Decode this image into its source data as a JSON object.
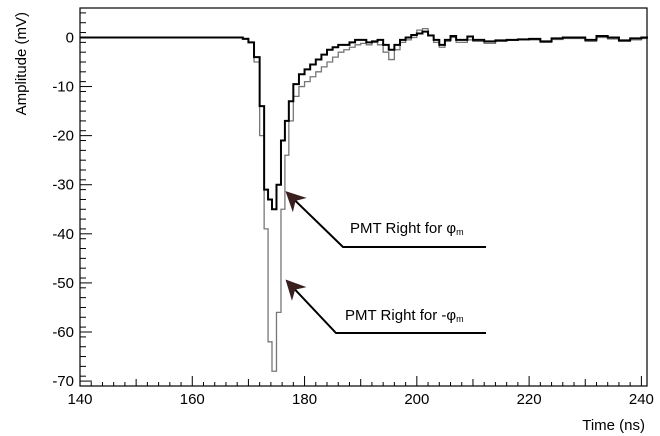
{
  "chart_data": {
    "type": "line",
    "title": "",
    "xlabel": "Time (ns)",
    "ylabel": "Amplitude (mV)",
    "xlim": [
      140,
      241
    ],
    "ylim": [
      -71,
      6
    ],
    "x_ticks": [
      140,
      160,
      180,
      200,
      220,
      240
    ],
    "y_ticks": [
      0,
      -10,
      -20,
      -30,
      -40,
      -50,
      -60,
      -70
    ],
    "grid": false,
    "series": [
      {
        "name": "PMT Right for φm",
        "color": "#000000",
        "x": [
          140,
          160,
          168,
          169,
          170,
          171,
          172,
          172.8,
          173.5,
          174.2,
          175,
          175.8,
          176.5,
          177.2,
          178,
          179,
          180,
          181,
          182,
          183,
          184,
          185,
          186,
          187,
          188,
          189,
          190,
          191,
          192,
          193,
          194,
          195,
          196,
          197,
          198,
          199,
          200,
          201,
          202,
          203,
          204,
          205,
          206,
          207,
          208,
          209,
          210,
          212,
          214,
          216,
          218,
          220,
          222,
          224,
          226,
          228,
          230,
          232,
          234,
          236,
          238,
          240,
          241
        ],
        "y": [
          0,
          0,
          0,
          -0.3,
          -1,
          -4,
          -14,
          -31,
          -33,
          -35,
          -30,
          -21,
          -17,
          -13,
          -9.5,
          -7.5,
          -6.5,
          -5.5,
          -4.5,
          -3.5,
          -2.5,
          -2,
          -1.5,
          -1.5,
          -1,
          -0.5,
          -0.5,
          -1,
          -0.8,
          -0.5,
          -1.5,
          -2.5,
          -1.5,
          -0.5,
          0,
          0.5,
          0.8,
          1.2,
          0.4,
          -0.5,
          -1.5,
          -0.5,
          0.3,
          -0.5,
          -0.5,
          0.2,
          -0.5,
          -0.8,
          -0.6,
          -0.5,
          -0.4,
          -0.3,
          -0.8,
          -0.2,
          0,
          0,
          -0.5,
          0.3,
          0,
          -0.6,
          -0.2,
          0,
          0.2
        ]
      },
      {
        "name": "PMT Right for -φm",
        "color": "#777777",
        "x": [
          140,
          160,
          168,
          169,
          170,
          171,
          172,
          172.8,
          173.5,
          174.2,
          175,
          175.8,
          176.5,
          177.2,
          178,
          179,
          180,
          181,
          182,
          183,
          184,
          185,
          186,
          187,
          188,
          189,
          190,
          191,
          192,
          193,
          194,
          195,
          196,
          197,
          198,
          199,
          200,
          201,
          202,
          203,
          204,
          205,
          206,
          207,
          208,
          209,
          210,
          212,
          214,
          216,
          218,
          220,
          222,
          224,
          226,
          228,
          230,
          232,
          234,
          236,
          238,
          240,
          241
        ],
        "y": [
          0,
          0,
          0,
          -0.2,
          -1,
          -5,
          -20,
          -39,
          -62,
          -68,
          -56,
          -35,
          -24,
          -17,
          -12,
          -10,
          -9,
          -8,
          -7,
          -6,
          -5,
          -4,
          -3,
          -2.5,
          -2,
          -1.5,
          -1.2,
          -1.5,
          -1,
          -1.5,
          -3,
          -4.5,
          -2.5,
          -1,
          -0.5,
          0,
          1.5,
          1.8,
          0.5,
          -1,
          -2,
          -0.8,
          0,
          -1,
          -1,
          -0.5,
          -0.8,
          -1.2,
          -0.8,
          -0.6,
          -0.5,
          -0.5,
          -1,
          -0.4,
          -0.2,
          -0.2,
          -0.8,
          0,
          -0.3,
          -0.8,
          -0.5,
          -0.2,
          0
        ]
      }
    ],
    "annotations": [
      {
        "text": "PMT Right for φ",
        "sub": "m",
        "target_x": 176.5,
        "target_y": -32
      },
      {
        "text": "PMT Right for -φ",
        "sub": "m",
        "target_x": 176.5,
        "target_y": -50
      }
    ]
  }
}
